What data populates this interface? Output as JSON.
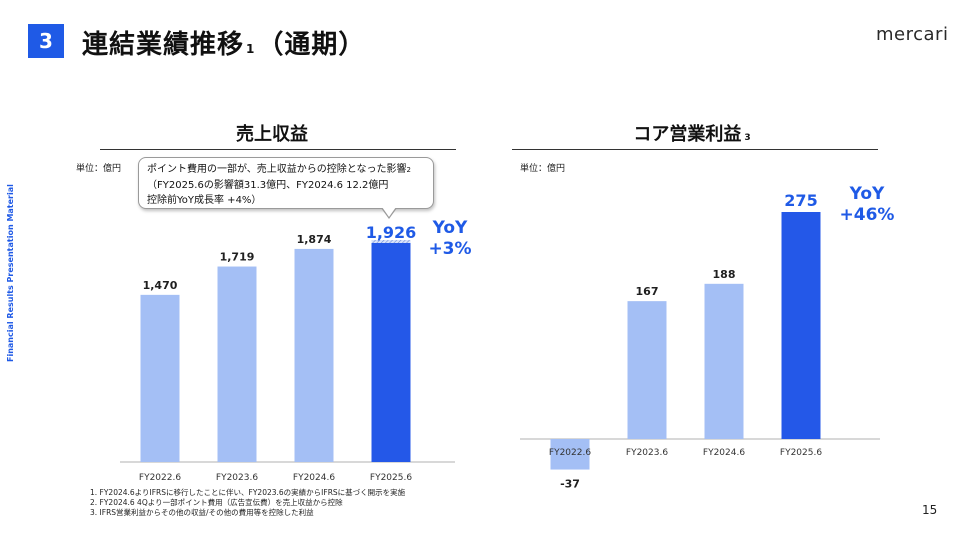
{
  "header": {
    "section_number": "3",
    "title": "連結業績推移",
    "title_note": "1",
    "title_suffix": "（通期）",
    "logo_text": "mercari"
  },
  "side_label": "Financial Results Presentation Material",
  "page_number": "15",
  "footnotes": [
    "1. FY2024.6よりIFRSに移行したことに伴い、FY2023.6の実績からIFRSに基づく開示を実施",
    "2. FY2024.6 4Qより一部ポイント費用（広告宣伝費）を売上収益から控除",
    "3. IFRS営業利益からその他の収益/その他の費用等を控除した利益"
  ],
  "callout": {
    "line1": "ポイント費用の一部が、売上収益からの控除となった影響",
    "line1_note": "2",
    "line2": "（FY2025.6の影響額31.3億円、FY2024.6 12.2億円",
    "line3": "控除前YoY成長率 +4%）"
  },
  "colors": {
    "accent": "#1f5ae6",
    "bar_light": "#a4bff5",
    "bar_highlight": "#2458e8"
  },
  "chart_data": [
    {
      "type": "bar",
      "title": "売上収益",
      "title_note": "",
      "unit": "単位：億円",
      "categories": [
        "FY2022.6",
        "FY2023.6",
        "FY2024.6",
        "FY2025.6"
      ],
      "values": [
        1470,
        1719,
        1874,
        1926
      ],
      "value_labels": [
        "1,470",
        "1,719",
        "1,874",
        "1,926"
      ],
      "highlight_index": 3,
      "ylim": [
        0,
        2000
      ],
      "yoy_label": "YoY",
      "yoy_value": "+3%"
    },
    {
      "type": "bar",
      "title": "コア営業利益",
      "title_note": "3",
      "unit": "単位：億円",
      "categories": [
        "FY2022.6",
        "FY2023.6",
        "FY2024.6",
        "FY2025.6"
      ],
      "values": [
        -37,
        167,
        188,
        275
      ],
      "value_labels": [
        "-37",
        "167",
        "188",
        "275"
      ],
      "highlight_index": 3,
      "ylim": [
        -37,
        275
      ],
      "yoy_label": "YoY",
      "yoy_value": "+46%"
    }
  ]
}
